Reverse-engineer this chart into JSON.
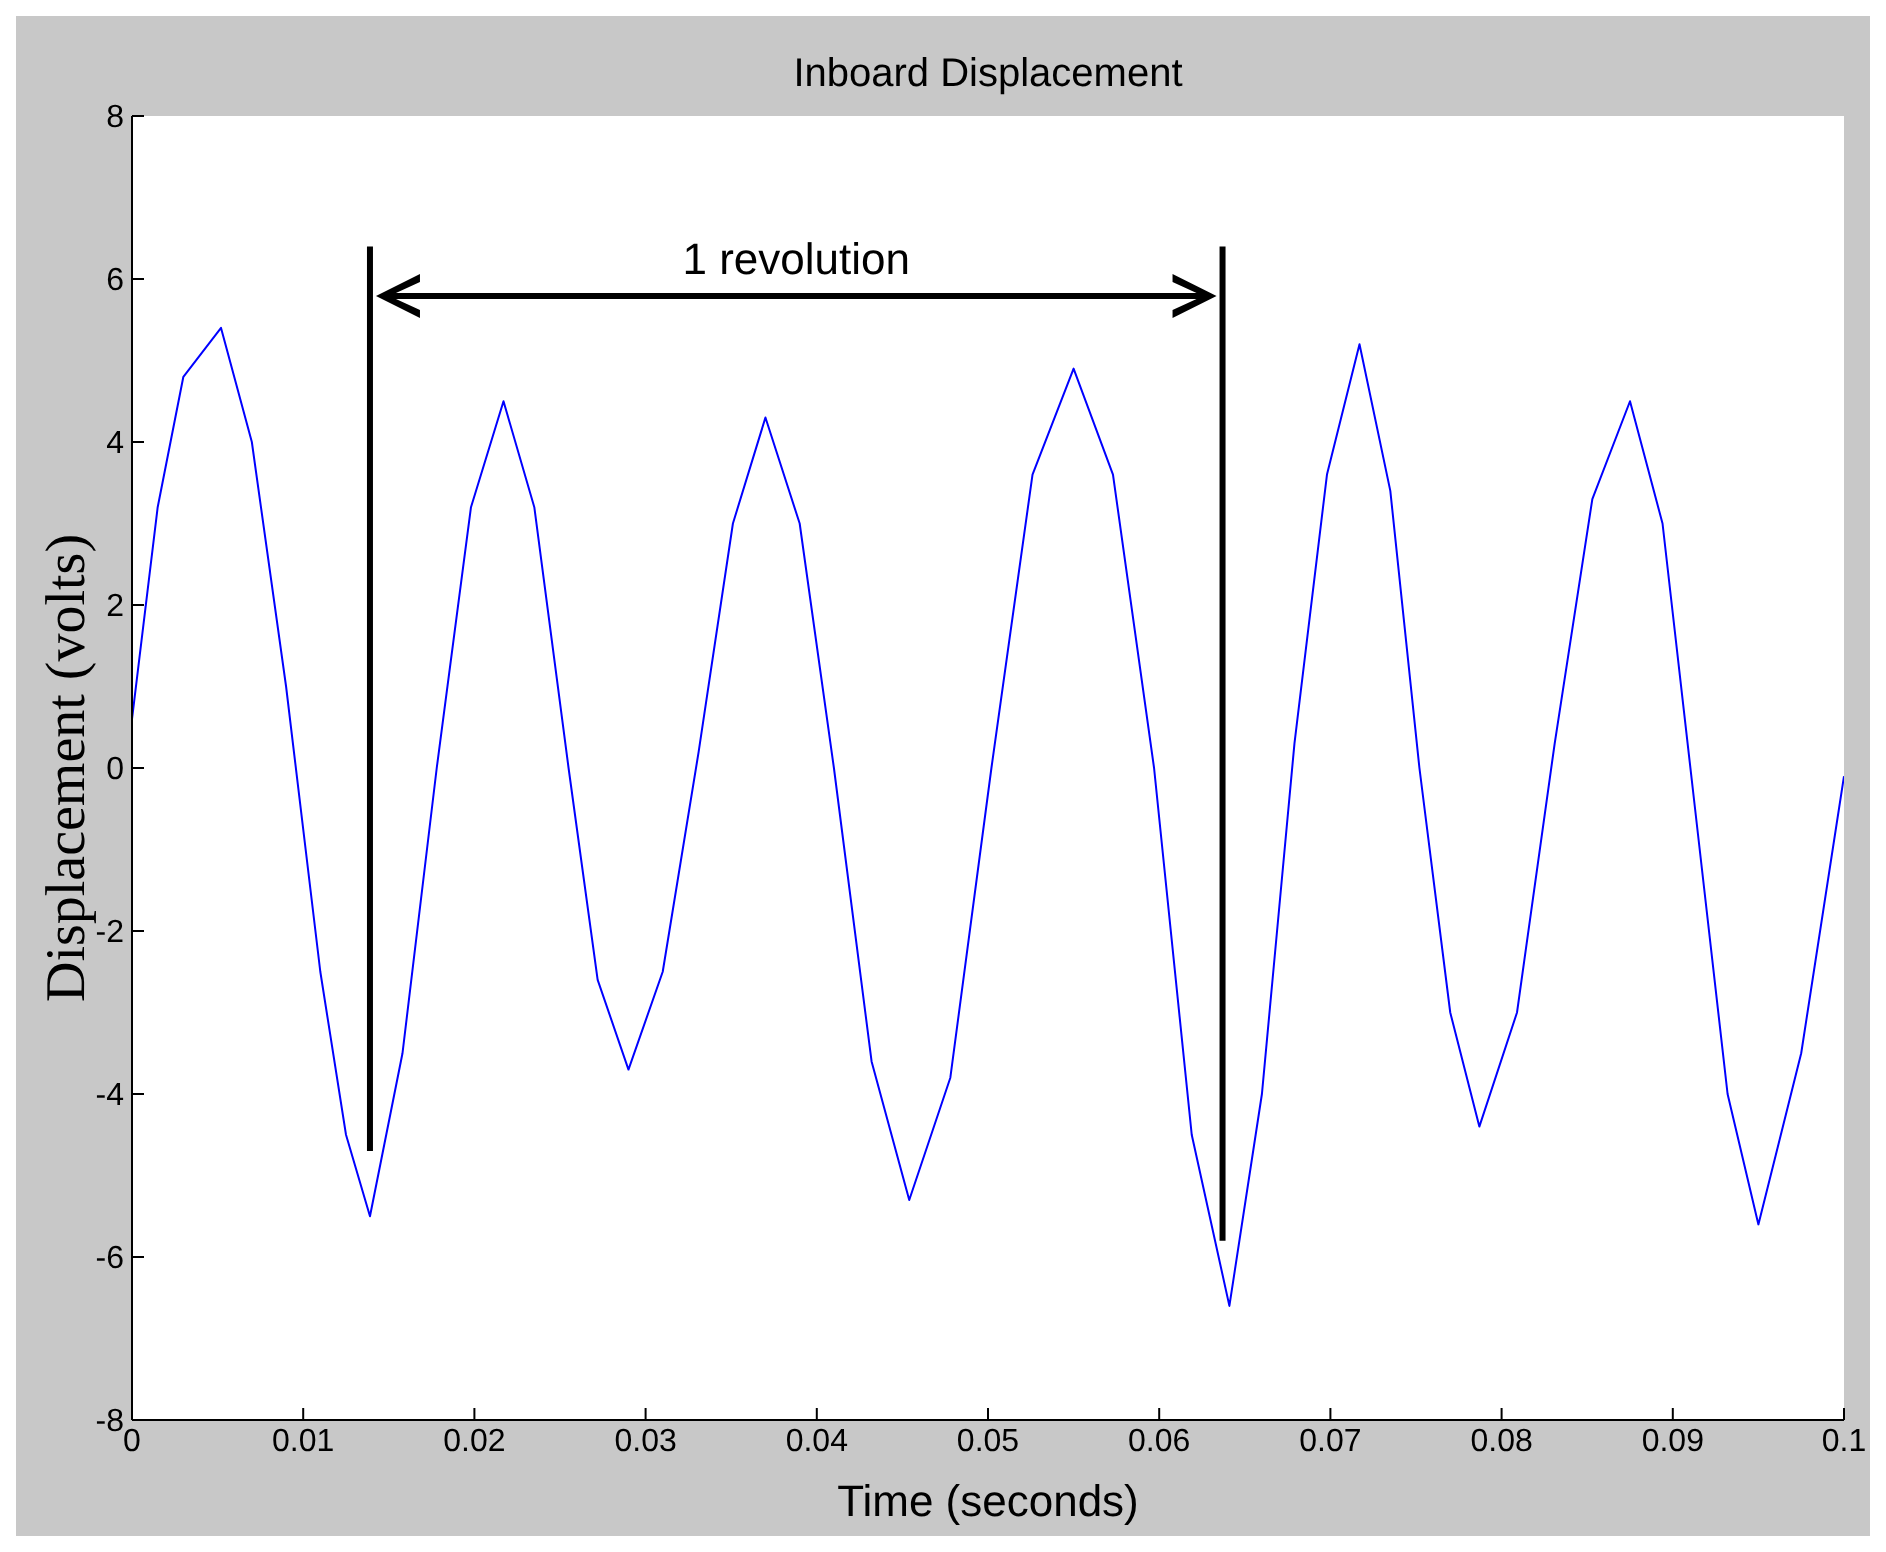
{
  "chart_data": {
    "type": "line",
    "title": "Inboard Displacement",
    "xlabel": "Time (seconds)",
    "ylabel": "Displacement (volts)",
    "x": [
      0,
      0.0015,
      0.003,
      0.0052,
      0.007,
      0.009,
      0.011,
      0.0125,
      0.0139,
      0.0158,
      0.0178,
      0.0198,
      0.0217,
      0.0235,
      0.0255,
      0.0272,
      0.029,
      0.031,
      0.0331,
      0.0351,
      0.037,
      0.039,
      0.041,
      0.0432,
      0.0454,
      0.0478,
      0.0502,
      0.0526,
      0.055,
      0.0573,
      0.0597,
      0.0619,
      0.0641,
      0.066,
      0.0679,
      0.0698,
      0.0717,
      0.0735,
      0.0752,
      0.077,
      0.0787,
      0.0809,
      0.0831,
      0.0853,
      0.0875,
      0.0894,
      0.0913,
      0.0932,
      0.095,
      0.0975,
      0.1
    ],
    "series": [
      {
        "color": "#0000ff",
        "values": [
          0.6,
          3.2,
          4.8,
          5.4,
          4.0,
          1.0,
          -2.5,
          -4.5,
          -5.5,
          -3.5,
          0.0,
          3.2,
          4.5,
          3.2,
          0.0,
          -2.6,
          -3.7,
          -2.5,
          0.2,
          3.0,
          4.3,
          3.0,
          0.0,
          -3.6,
          -5.3,
          -3.8,
          0.0,
          3.6,
          4.9,
          3.6,
          0.0,
          -4.5,
          -6.6,
          -4.0,
          0.3,
          3.6,
          5.2,
          3.4,
          0.0,
          -3.0,
          -4.4,
          -3.0,
          0.3,
          3.3,
          4.5,
          3.0,
          -0.5,
          -4.0,
          -5.6,
          -3.5,
          -0.1
        ]
      }
    ],
    "xlim": [
      0,
      0.1
    ],
    "xticks": [
      0,
      0.01,
      0.02,
      0.03,
      0.04,
      0.05,
      0.06,
      0.07,
      0.08,
      0.09,
      0.1
    ],
    "ylim": [
      -8,
      8
    ],
    "yticks": [
      -8,
      -6,
      -4,
      -2,
      0,
      2,
      4,
      6,
      8
    ],
    "legend": false,
    "marker": "none",
    "line_style": "solid",
    "ref_lines": [
      {
        "axis": "x",
        "value": 0.0139,
        "color": "#000000"
      },
      {
        "axis": "x",
        "value": 0.0637,
        "color": "#000000"
      }
    ],
    "annotations": [
      "1 revolution"
    ]
  }
}
